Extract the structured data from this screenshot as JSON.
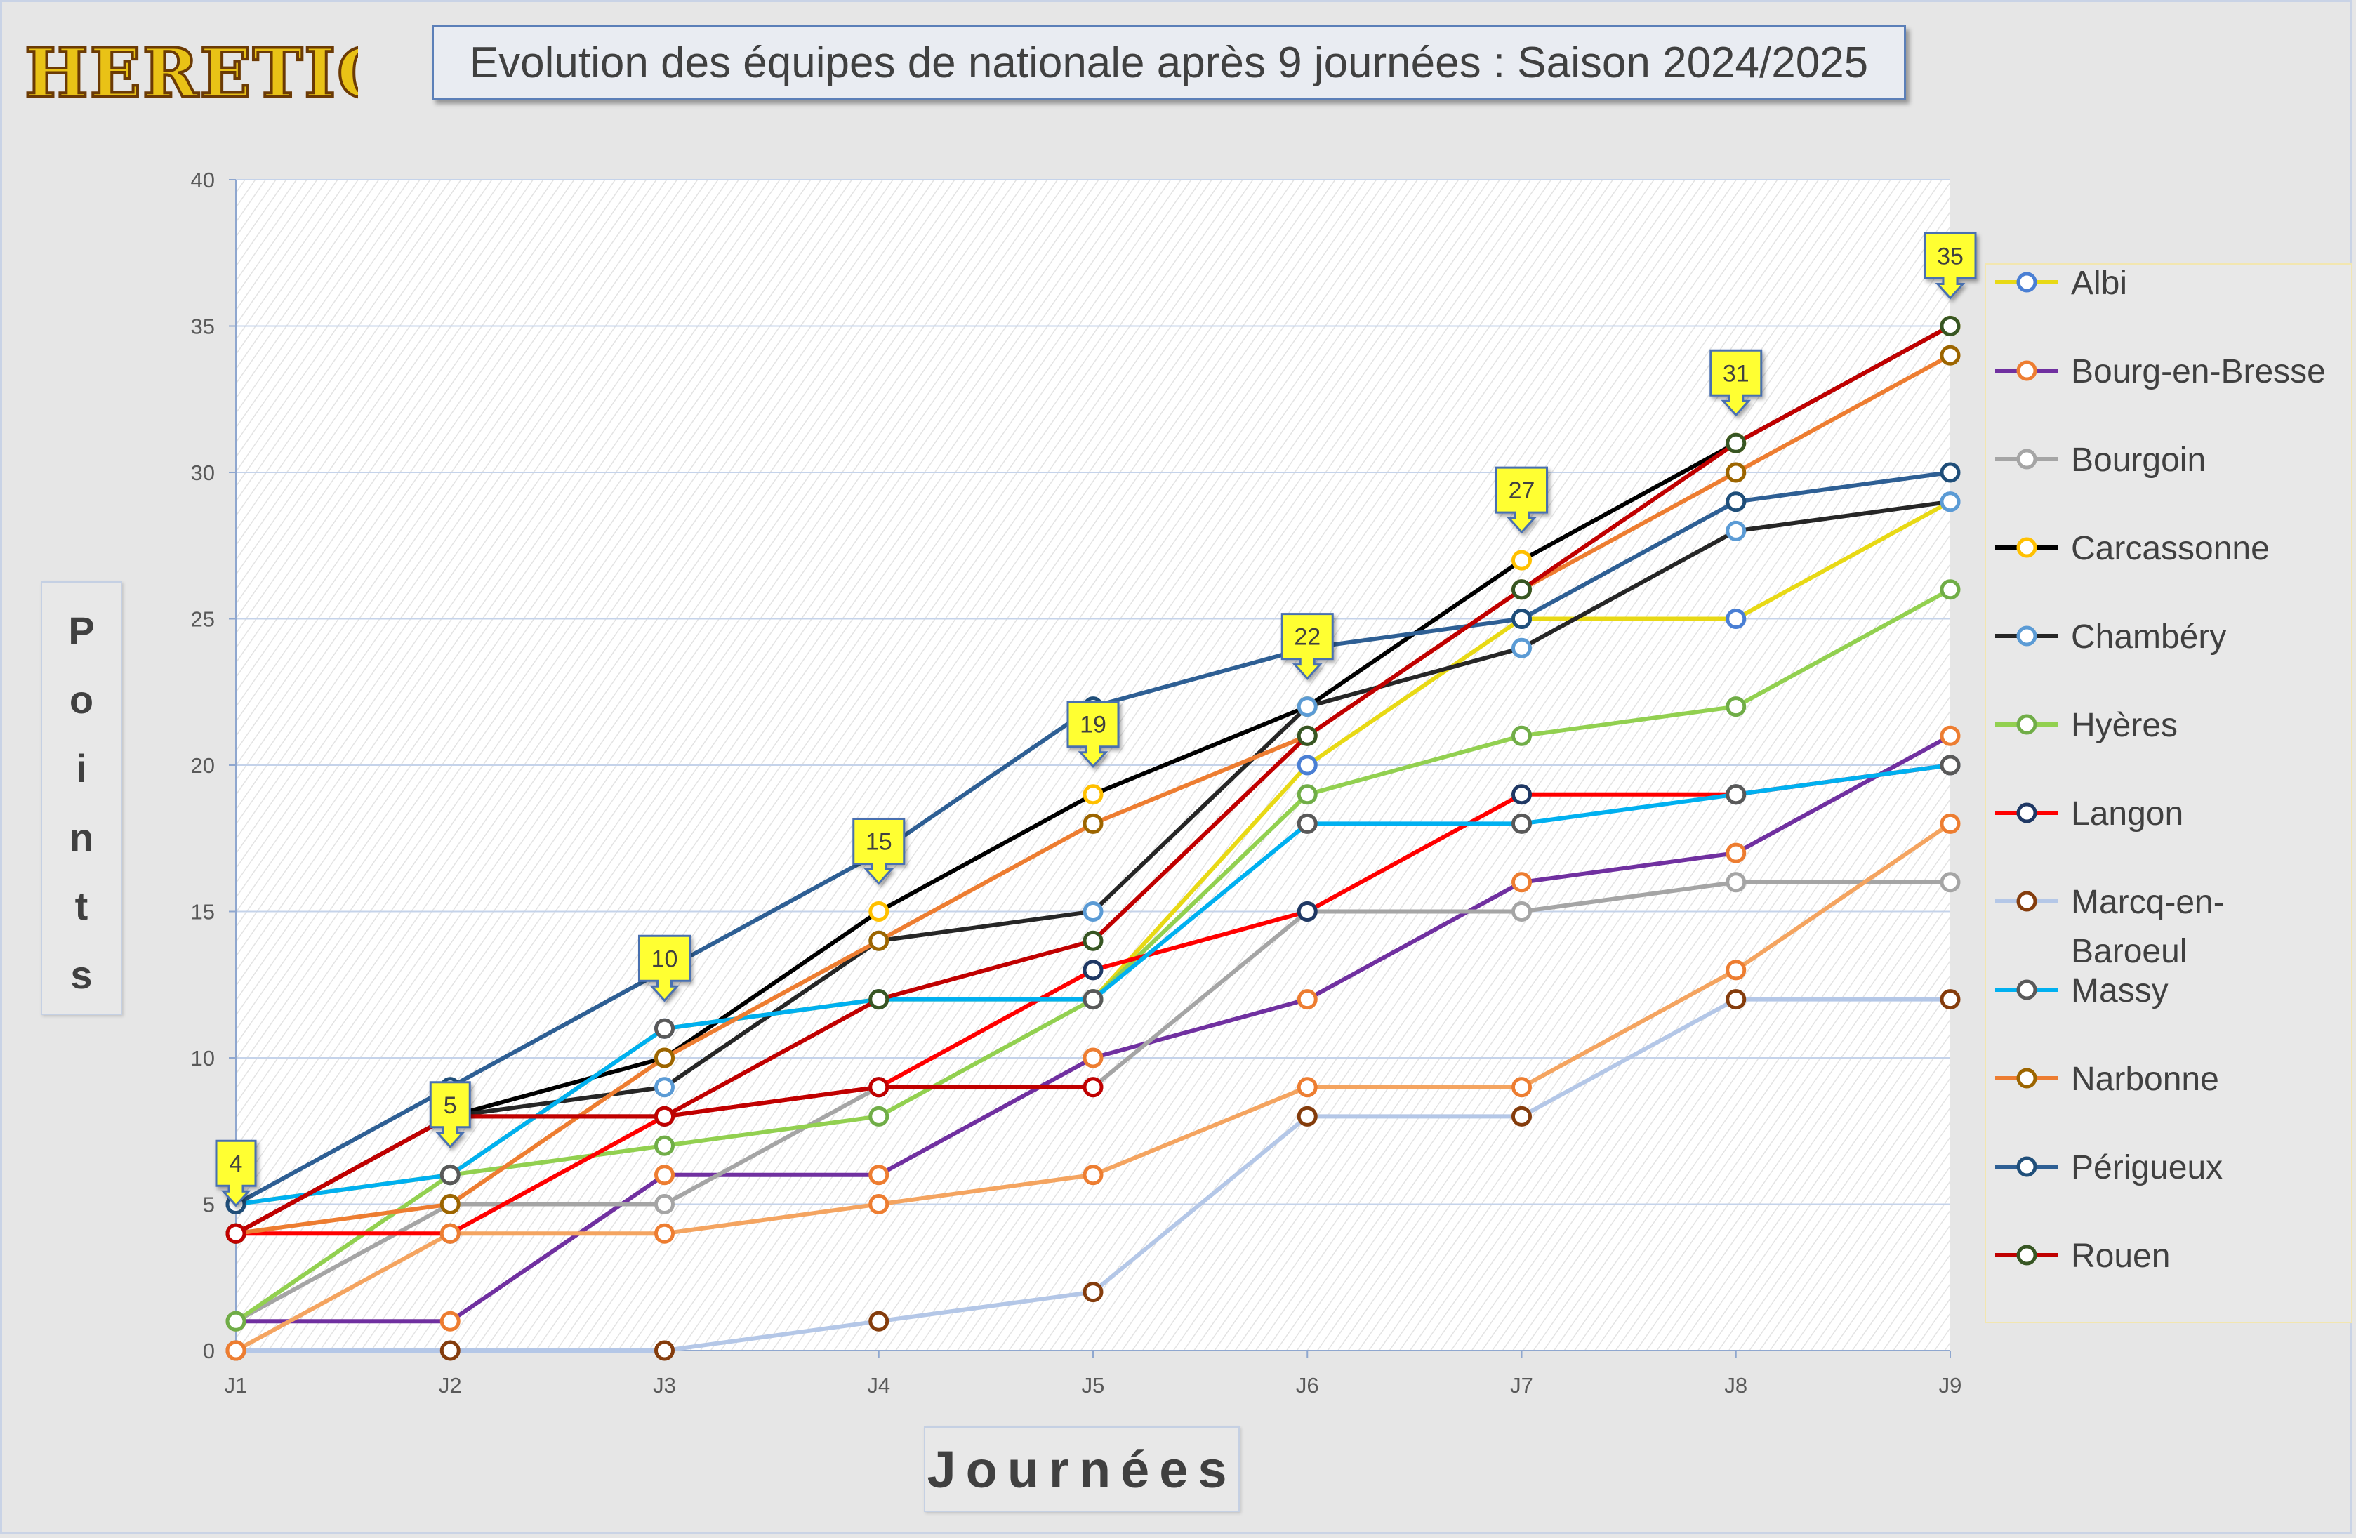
{
  "header": {
    "title": "Evolution des équipes de nationale après 9 journées : Saison 2024/2025",
    "logo_text": "HERETIQUES"
  },
  "axes": {
    "y_label": "Points",
    "x_label": "Journées"
  },
  "chart_data": {
    "type": "line",
    "title": "Evolution des équipes de nationale après 9 journées : Saison 2024/2025",
    "xlabel": "Journées",
    "ylabel": "Points",
    "categories": [
      "J1",
      "J2",
      "J3",
      "J4",
      "J5",
      "J6",
      "J7",
      "J8",
      "J9"
    ],
    "ylim": [
      0,
      40
    ],
    "yticks": [
      0,
      5,
      10,
      15,
      20,
      25,
      30,
      35,
      40
    ],
    "grid": true,
    "legend_position": "right",
    "series": [
      {
        "name": "Albi",
        "color": "#e8d915",
        "marker": "#4a7fd4",
        "values": [
          5,
          6,
          11,
          12,
          12,
          20,
          25,
          25,
          29
        ]
      },
      {
        "name": "Bourg-en-Bresse",
        "color": "#7030a0",
        "marker": "#ed7d31",
        "values": [
          1,
          1,
          6,
          6,
          10,
          12,
          16,
          17,
          21
        ]
      },
      {
        "name": "Bourgoin",
        "color": "#a5a5a5",
        "marker": "#a5a5a5",
        "values": [
          1,
          5,
          5,
          9,
          9,
          15,
          15,
          16,
          16
        ]
      },
      {
        "name": "Carcassonne",
        "color": "#000000",
        "marker": "#ffc000",
        "values": [
          4,
          8,
          10,
          15,
          19,
          22,
          27,
          31,
          35
        ]
      },
      {
        "name": "Chambéry",
        "color": "#262626",
        "marker": "#5b9bd5",
        "values": [
          4,
          8,
          9,
          14,
          15,
          22,
          24,
          28,
          29
        ]
      },
      {
        "name": "Hyères",
        "color": "#92d050",
        "marker": "#70ad47",
        "values": [
          1,
          6,
          7,
          8,
          12,
          19,
          21,
          22,
          26
        ]
      },
      {
        "name": "Langon",
        "color": "#ff0000",
        "marker": "#1f3864",
        "values": [
          4,
          4,
          8,
          9,
          13,
          15,
          19,
          19,
          20
        ]
      },
      {
        "name": "Marcq-en-Baroeul",
        "color": "#b4c7e7",
        "marker": "#843c0c",
        "values": [
          0,
          0,
          0,
          1,
          2,
          8,
          8,
          12,
          12
        ]
      },
      {
        "name": "Massy",
        "color": "#00b0f0",
        "marker": "#595959",
        "values": [
          5,
          6,
          11,
          12,
          12,
          18,
          18,
          19,
          20
        ]
      },
      {
        "name": "Narbonne",
        "color": "#ed7d31",
        "marker": "#9c6500",
        "values": [
          4,
          5,
          10,
          14,
          18,
          21,
          26,
          30,
          34
        ]
      },
      {
        "name": "Périgueux",
        "color": "#2e5f94",
        "marker": "#1f4e79",
        "values": [
          5,
          9,
          13,
          17,
          22,
          24,
          25,
          29,
          30
        ]
      },
      {
        "name": "Rouen",
        "color": "#c00000",
        "marker": "#375623",
        "values": [
          4,
          8,
          8,
          12,
          14,
          21,
          26,
          31,
          35
        ]
      },
      {
        "name": "",
        "color": "#c00000",
        "marker": "#c00000",
        "values": [
          4,
          8,
          8,
          9,
          9,
          null,
          null,
          null,
          null
        ]
      },
      {
        "name": "",
        "color": "#f4a460",
        "marker": "#ed7d31",
        "values": [
          0,
          4,
          4,
          5,
          6,
          9,
          9,
          13,
          18
        ]
      }
    ],
    "callouts": [
      {
        "x": "J1",
        "value": 4,
        "label": "4"
      },
      {
        "x": "J2",
        "value": 6,
        "label": "5"
      },
      {
        "x": "J3",
        "value": 11,
        "label": "10"
      },
      {
        "x": "J4",
        "value": 15,
        "label": "15"
      },
      {
        "x": "J5",
        "value": 19,
        "label": "19"
      },
      {
        "x": "J6",
        "value": 22,
        "label": "22"
      },
      {
        "x": "J7",
        "value": 27,
        "label": "27"
      },
      {
        "x": "J8",
        "value": 31,
        "label": "31"
      },
      {
        "x": "J9",
        "value": 35,
        "label": "35"
      }
    ],
    "legend": [
      "Albi",
      "Bourg-en-Bresse",
      "Bourgoin",
      "Carcassonne",
      "Chambéry",
      "Hyères",
      "Langon",
      "Marcq-en-Baroeul",
      "Massy",
      "Narbonne",
      "Périgueux",
      "Rouen"
    ]
  }
}
